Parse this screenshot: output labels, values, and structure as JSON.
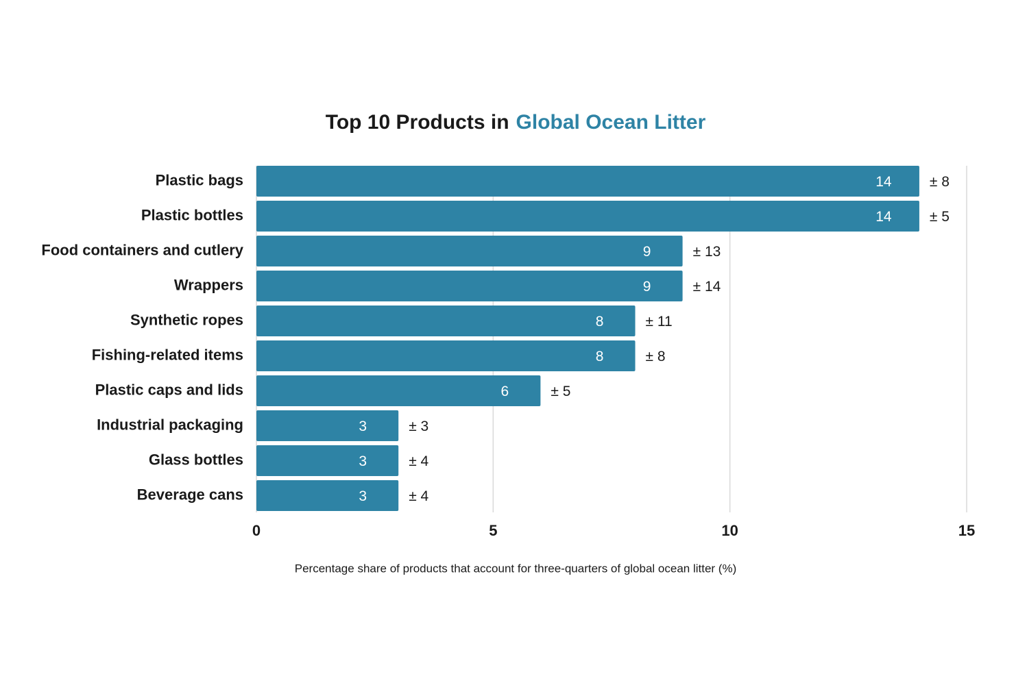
{
  "chart_data": {
    "type": "bar",
    "orientation": "horizontal",
    "title": "Top 10 Products in",
    "title_highlight": "Global Ocean Litter",
    "title_highlight_color": "#2e83a5",
    "xlabel": "Percentage share of products that account for three-quarters of global ocean litter (%)",
    "categories": [
      "Plastic bags",
      "Plastic bottles",
      "Food containers and cutlery",
      "Wrappers",
      "Synthetic ropes",
      "Fishing-related items",
      "Plastic caps and lids",
      "Industrial packaging",
      "Glass bottles",
      "Beverage cans"
    ],
    "values": [
      14,
      14,
      9,
      9,
      8,
      8,
      6,
      3,
      3,
      3
    ],
    "errors": [
      8,
      5,
      13,
      14,
      11,
      8,
      5,
      3,
      4,
      4
    ],
    "error_labels": [
      "± 8",
      "± 5",
      "± 13",
      "± 14",
      "± 11",
      "± 8",
      "± 5",
      "± 3",
      "± 4",
      "± 4"
    ],
    "color": "#2e83a5",
    "xlim": [
      0,
      15
    ],
    "xticks": [
      0,
      5,
      10,
      15
    ],
    "grid": true
  }
}
